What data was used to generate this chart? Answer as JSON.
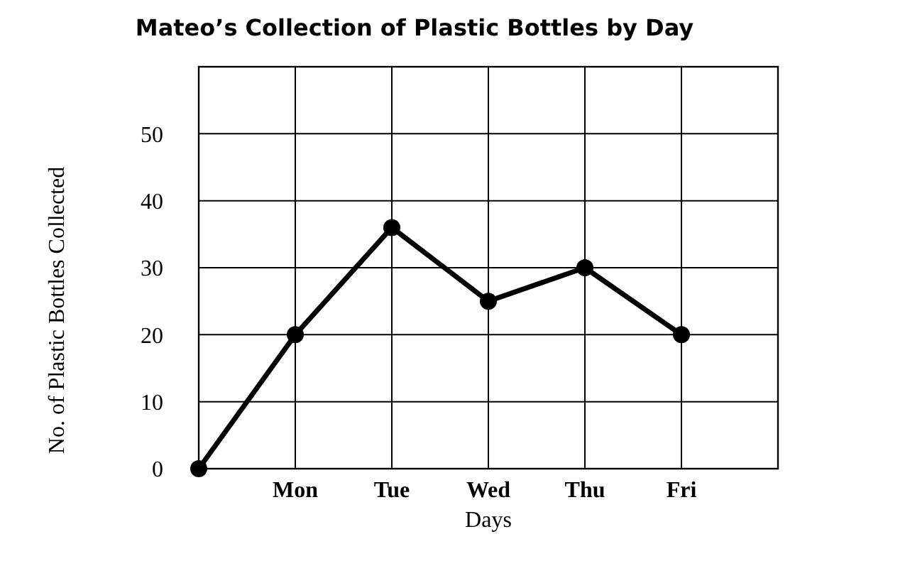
{
  "chart_data": {
    "type": "line",
    "title": "Mateo’s Collection of Plastic Bottles by Day",
    "xlabel": "Days",
    "ylabel": "No. of Plastic Bottles Collected",
    "categories": [
      null,
      "Mon",
      "Tue",
      "Wed",
      "Thu",
      "Fri",
      null
    ],
    "series": [
      {
        "color": "#000000",
        "values": [
          0,
          20,
          36,
          25,
          30,
          20,
          null
        ]
      }
    ],
    "ylim": [
      0,
      60
    ],
    "yticks": [
      0,
      10,
      20,
      30,
      40,
      50
    ],
    "grid": true,
    "marker": "circle",
    "line_style": "solid"
  }
}
